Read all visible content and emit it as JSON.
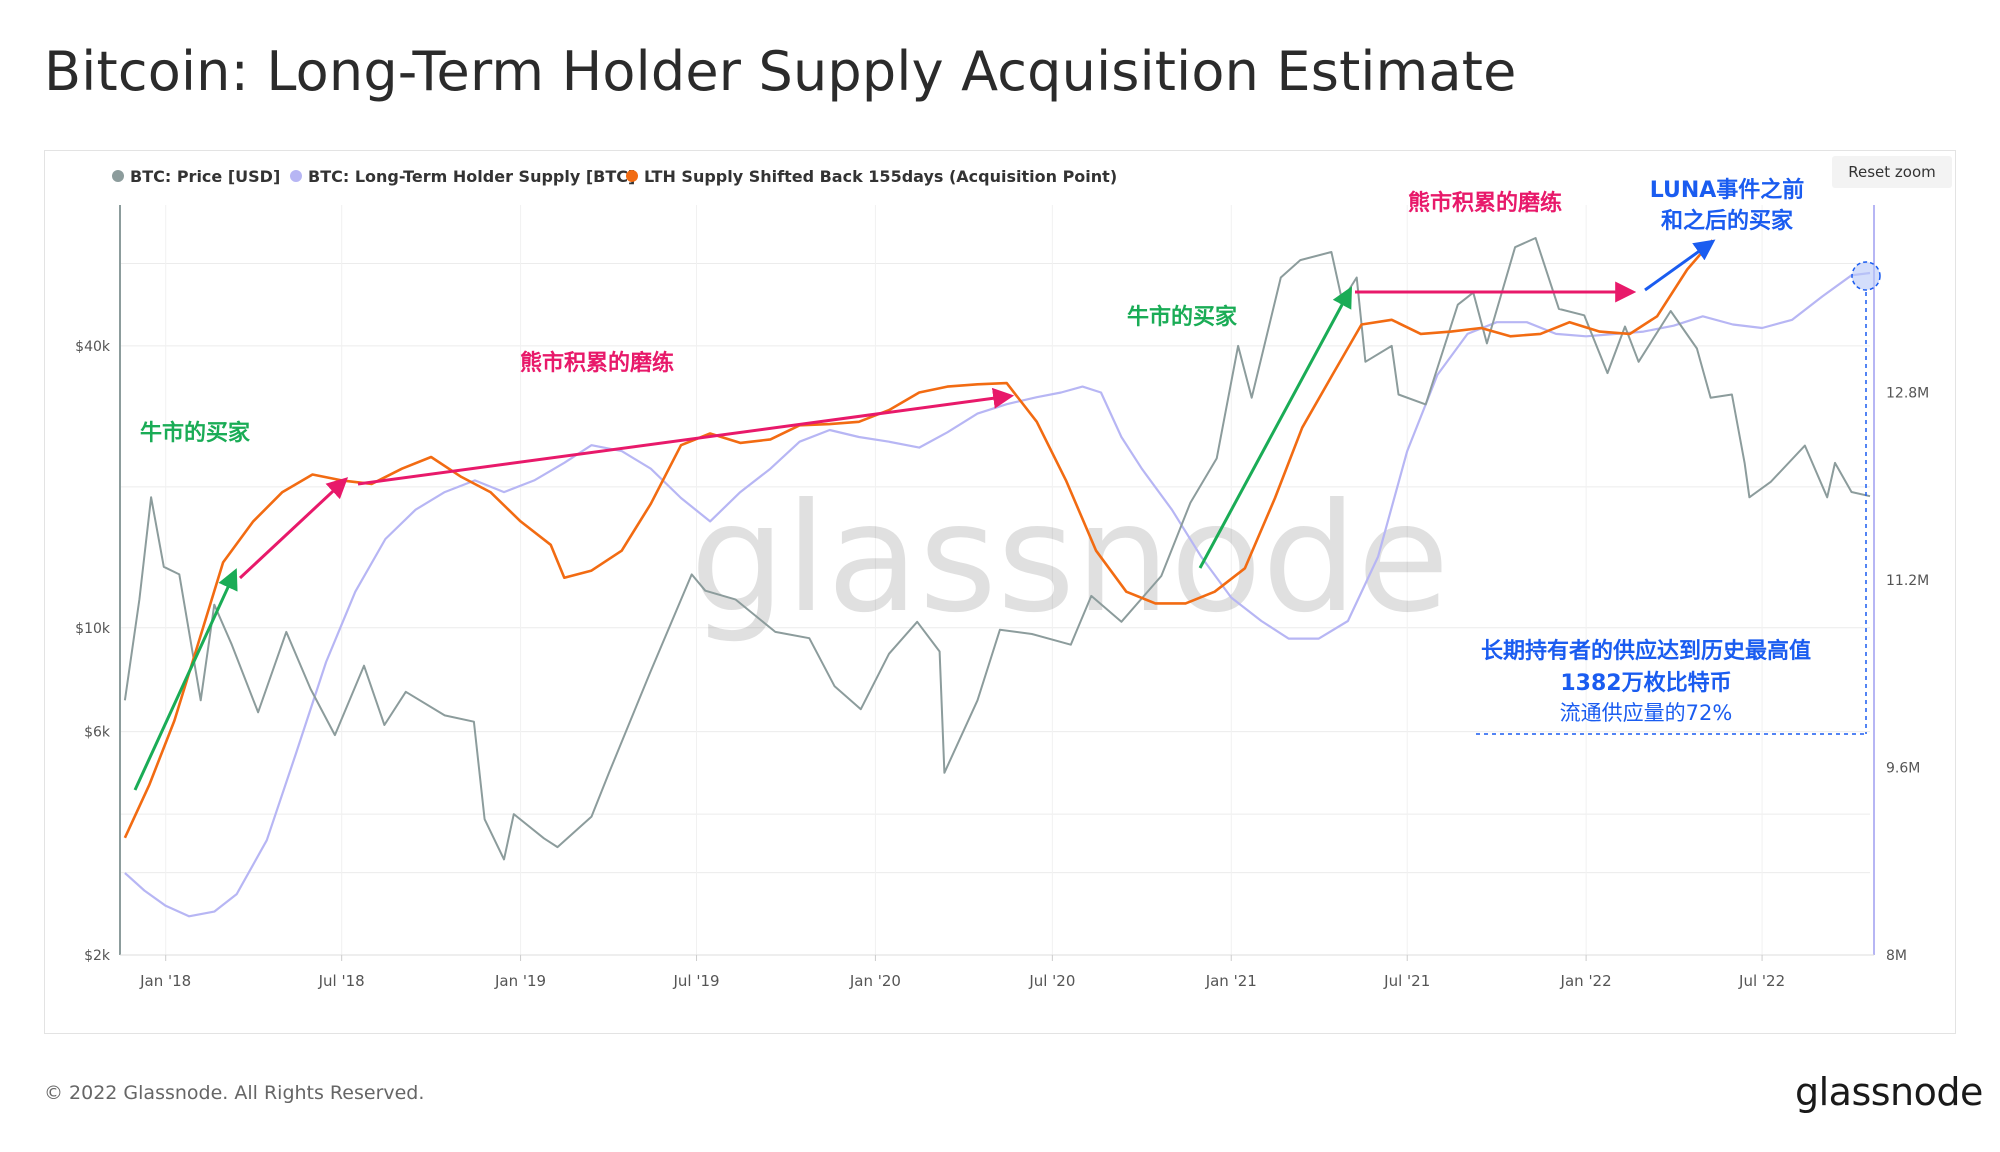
{
  "header": {
    "title": "Bitcoin: Long-Term Holder Supply Acquisition Estimate"
  },
  "toolbar": {
    "reset_zoom_label": "Reset zoom"
  },
  "footer": {
    "copyright": "© 2022 Glassnode. All Rights Reserved.",
    "logo_text": "glassnode"
  },
  "watermark": "glassnode",
  "colors": {
    "price": "#8c9c9c",
    "lth_supply": "#b7b6f4",
    "shifted": "#f26b12",
    "green": "#1aac56",
    "pink": "#e8196a",
    "blue": "#1a5cf0"
  },
  "chart_data": {
    "type": "line",
    "title": "Bitcoin: Long-Term Holder Supply Acquisition Estimate",
    "x_ticks": [
      "Jan '18",
      "Jul '18",
      "Jan '19",
      "Jul '19",
      "Jan '20",
      "Jul '20",
      "Jan '21",
      "Jul '21",
      "Jan '22",
      "Jul '22"
    ],
    "x_tick_dates": [
      "2018-01-01",
      "2018-07-01",
      "2019-01-01",
      "2019-07-01",
      "2020-01-01",
      "2020-07-01",
      "2021-01-01",
      "2021-07-01",
      "2022-01-01",
      "2022-07-01"
    ],
    "x_range": [
      "2017-11-15",
      "2022-10-20"
    ],
    "y_left": {
      "scale": "log",
      "range": [
        2000,
        80000
      ],
      "ticks": [
        2000,
        6000,
        10000,
        40000
      ],
      "tick_labels": [
        "$2k",
        "$6k",
        "$10k",
        "$40k"
      ]
    },
    "y_right": {
      "scale": "linear",
      "range": [
        8000000,
        14400000
      ],
      "ticks": [
        8000000,
        9600000,
        11200000,
        12800000
      ],
      "tick_labels": [
        "8M",
        "9.6M",
        "11.2M",
        "12.8M"
      ]
    },
    "legend": {
      "position": "top-left",
      "entries": [
        "BTC: Price [USD]",
        "BTC: Long-Term Holder Supply [BTC]",
        "LTH Supply Shifted Back 155days (Acquisition Point)"
      ]
    },
    "series": [
      {
        "name": "BTC: Price [USD]",
        "axis": "left",
        "points": [
          [
            "2017-11-20",
            7000
          ],
          [
            "2017-12-05",
            11500
          ],
          [
            "2017-12-17",
            19000
          ],
          [
            "2017-12-30",
            13500
          ],
          [
            "2018-01-15",
            13000
          ],
          [
            "2018-02-06",
            7000
          ],
          [
            "2018-02-20",
            11200
          ],
          [
            "2018-03-10",
            9200
          ],
          [
            "2018-04-06",
            6600
          ],
          [
            "2018-05-05",
            9800
          ],
          [
            "2018-05-30",
            7400
          ],
          [
            "2018-06-24",
            5900
          ],
          [
            "2018-07-24",
            8300
          ],
          [
            "2018-08-14",
            6200
          ],
          [
            "2018-09-05",
            7300
          ],
          [
            "2018-10-15",
            6500
          ],
          [
            "2018-11-14",
            6300
          ],
          [
            "2018-11-25",
            3900
          ],
          [
            "2018-12-15",
            3200
          ],
          [
            "2018-12-25",
            4000
          ],
          [
            "2019-01-25",
            3550
          ],
          [
            "2019-02-08",
            3400
          ],
          [
            "2019-03-15",
            3950
          ],
          [
            "2019-04-02",
            4900
          ],
          [
            "2019-05-14",
            8000
          ],
          [
            "2019-06-26",
            13000
          ],
          [
            "2019-07-10",
            12000
          ],
          [
            "2019-08-10",
            11500
          ],
          [
            "2019-09-20",
            9800
          ],
          [
            "2019-10-25",
            9500
          ],
          [
            "2019-11-20",
            7500
          ],
          [
            "2019-12-17",
            6700
          ],
          [
            "2020-01-15",
            8800
          ],
          [
            "2020-02-13",
            10300
          ],
          [
            "2020-03-07",
            8900
          ],
          [
            "2020-03-12",
            4900
          ],
          [
            "2020-04-15",
            7000
          ],
          [
            "2020-05-08",
            9900
          ],
          [
            "2020-06-10",
            9700
          ],
          [
            "2020-07-20",
            9200
          ],
          [
            "2020-08-10",
            11700
          ],
          [
            "2020-09-10",
            10300
          ],
          [
            "2020-10-21",
            12900
          ],
          [
            "2020-11-20",
            18500
          ],
          [
            "2020-12-17",
            23000
          ],
          [
            "2021-01-08",
            40000
          ],
          [
            "2021-01-22",
            31000
          ],
          [
            "2021-02-21",
            56000
          ],
          [
            "2021-03-13",
            61000
          ],
          [
            "2021-04-14",
            63500
          ],
          [
            "2021-04-25",
            50000
          ],
          [
            "2021-05-10",
            56000
          ],
          [
            "2021-05-19",
            37000
          ],
          [
            "2021-06-15",
            40000
          ],
          [
            "2021-06-22",
            31500
          ],
          [
            "2021-07-20",
            30000
          ],
          [
            "2021-08-22",
            49000
          ],
          [
            "2021-09-07",
            52000
          ],
          [
            "2021-09-21",
            40500
          ],
          [
            "2021-10-20",
            65000
          ],
          [
            "2021-11-10",
            68000
          ],
          [
            "2021-12-04",
            48000
          ],
          [
            "2021-12-30",
            46500
          ],
          [
            "2022-01-23",
            35000
          ],
          [
            "2022-02-10",
            44000
          ],
          [
            "2022-02-24",
            37000
          ],
          [
            "2022-03-29",
            47500
          ],
          [
            "2022-04-25",
            39500
          ],
          [
            "2022-05-09",
            31000
          ],
          [
            "2022-05-31",
            31500
          ],
          [
            "2022-06-13",
            22500
          ],
          [
            "2022-06-18",
            19000
          ],
          [
            "2022-07-10",
            20500
          ],
          [
            "2022-08-14",
            24500
          ],
          [
            "2022-09-06",
            19000
          ],
          [
            "2022-09-14",
            22500
          ],
          [
            "2022-10-01",
            19500
          ],
          [
            "2022-10-20",
            19100
          ]
        ]
      },
      {
        "name": "BTC: Long-Term Holder Supply [BTC]",
        "axis": "right",
        "points": [
          [
            "2017-11-20",
            8700000
          ],
          [
            "2017-12-10",
            8550000
          ],
          [
            "2018-01-01",
            8420000
          ],
          [
            "2018-01-25",
            8330000
          ],
          [
            "2018-02-20",
            8370000
          ],
          [
            "2018-03-15",
            8520000
          ],
          [
            "2018-04-15",
            8980000
          ],
          [
            "2018-05-15",
            9720000
          ],
          [
            "2018-06-15",
            10500000
          ],
          [
            "2018-07-15",
            11100000
          ],
          [
            "2018-08-15",
            11550000
          ],
          [
            "2018-09-15",
            11800000
          ],
          [
            "2018-10-15",
            11950000
          ],
          [
            "2018-11-15",
            12050000
          ],
          [
            "2018-12-15",
            11950000
          ],
          [
            "2019-01-15",
            12050000
          ],
          [
            "2019-02-15",
            12200000
          ],
          [
            "2019-03-15",
            12350000
          ],
          [
            "2019-04-15",
            12300000
          ],
          [
            "2019-05-15",
            12150000
          ],
          [
            "2019-06-15",
            11900000
          ],
          [
            "2019-07-15",
            11700000
          ],
          [
            "2019-08-15",
            11950000
          ],
          [
            "2019-09-15",
            12150000
          ],
          [
            "2019-10-15",
            12380000
          ],
          [
            "2019-11-15",
            12480000
          ],
          [
            "2019-12-15",
            12420000
          ],
          [
            "2020-01-15",
            12380000
          ],
          [
            "2020-02-15",
            12330000
          ],
          [
            "2020-03-15",
            12460000
          ],
          [
            "2020-04-15",
            12620000
          ],
          [
            "2020-05-15",
            12700000
          ],
          [
            "2020-06-15",
            12760000
          ],
          [
            "2020-07-10",
            12800000
          ],
          [
            "2020-08-01",
            12850000
          ],
          [
            "2020-08-20",
            12800000
          ],
          [
            "2020-09-10",
            12420000
          ],
          [
            "2020-10-01",
            12150000
          ],
          [
            "2020-11-01",
            11800000
          ],
          [
            "2020-12-01",
            11400000
          ],
          [
            "2021-01-01",
            11050000
          ],
          [
            "2021-02-01",
            10850000
          ],
          [
            "2021-03-01",
            10700000
          ],
          [
            "2021-04-01",
            10700000
          ],
          [
            "2021-05-01",
            10850000
          ],
          [
            "2021-06-01",
            11400000
          ],
          [
            "2021-07-01",
            12300000
          ],
          [
            "2021-08-01",
            12950000
          ],
          [
            "2021-09-01",
            13300000
          ],
          [
            "2021-10-01",
            13400000
          ],
          [
            "2021-11-01",
            13400000
          ],
          [
            "2021-12-01",
            13300000
          ],
          [
            "2022-01-01",
            13280000
          ],
          [
            "2022-02-01",
            13300000
          ],
          [
            "2022-03-01",
            13320000
          ],
          [
            "2022-04-01",
            13370000
          ],
          [
            "2022-05-01",
            13450000
          ],
          [
            "2022-06-01",
            13380000
          ],
          [
            "2022-07-01",
            13350000
          ],
          [
            "2022-08-01",
            13420000
          ],
          [
            "2022-09-01",
            13620000
          ],
          [
            "2022-10-01",
            13800000
          ],
          [
            "2022-10-20",
            13820000
          ]
        ]
      },
      {
        "name": "LTH Supply Shifted Back 155days (Acquisition Point)",
        "axis": "right",
        "points": [
          [
            "2017-11-20",
            9000000
          ],
          [
            "2017-12-15",
            9450000
          ],
          [
            "2018-01-10",
            10000000
          ],
          [
            "2018-02-05",
            10700000
          ],
          [
            "2018-03-01",
            11350000
          ],
          [
            "2018-04-01",
            11700000
          ],
          [
            "2018-05-01",
            11950000
          ],
          [
            "2018-06-01",
            12100000
          ],
          [
            "2018-07-01",
            12050000
          ],
          [
            "2018-08-01",
            12020000
          ],
          [
            "2018-09-01",
            12150000
          ],
          [
            "2018-10-01",
            12250000
          ],
          [
            "2018-11-01",
            12080000
          ],
          [
            "2018-12-01",
            11950000
          ],
          [
            "2019-01-01",
            11700000
          ],
          [
            "2019-02-01",
            11500000
          ],
          [
            "2019-02-15",
            11220000
          ],
          [
            "2019-03-15",
            11280000
          ],
          [
            "2019-04-15",
            11450000
          ],
          [
            "2019-05-15",
            11850000
          ],
          [
            "2019-06-15",
            12350000
          ],
          [
            "2019-07-15",
            12450000
          ],
          [
            "2019-08-15",
            12370000
          ],
          [
            "2019-09-15",
            12400000
          ],
          [
            "2019-10-15",
            12520000
          ],
          [
            "2019-11-15",
            12530000
          ],
          [
            "2019-12-15",
            12550000
          ],
          [
            "2020-01-15",
            12650000
          ],
          [
            "2020-02-15",
            12800000
          ],
          [
            "2020-03-15",
            12850000
          ],
          [
            "2020-04-15",
            12870000
          ],
          [
            "2020-05-15",
            12880000
          ],
          [
            "2020-06-15",
            12550000
          ],
          [
            "2020-07-15",
            12050000
          ],
          [
            "2020-08-15",
            11450000
          ],
          [
            "2020-09-15",
            11100000
          ],
          [
            "2020-10-15",
            11000000
          ],
          [
            "2020-11-15",
            11000000
          ],
          [
            "2020-12-15",
            11100000
          ],
          [
            "2021-01-15",
            11300000
          ],
          [
            "2021-02-15",
            11900000
          ],
          [
            "2021-03-15",
            12500000
          ],
          [
            "2021-04-15",
            12950000
          ],
          [
            "2021-05-15",
            13380000
          ],
          [
            "2021-06-15",
            13420000
          ],
          [
            "2021-07-15",
            13300000
          ],
          [
            "2021-08-15",
            13320000
          ],
          [
            "2021-09-15",
            13350000
          ],
          [
            "2021-10-15",
            13280000
          ],
          [
            "2021-11-15",
            13300000
          ],
          [
            "2021-12-15",
            13400000
          ],
          [
            "2022-01-15",
            13320000
          ],
          [
            "2022-02-15",
            13300000
          ],
          [
            "2022-03-15",
            13450000
          ],
          [
            "2022-04-15",
            13850000
          ],
          [
            "2022-05-11",
            14100000
          ]
        ]
      }
    ],
    "annotations": [
      {
        "key": "bull_buyers_1",
        "text": "牛市的买家",
        "color": "green"
      },
      {
        "key": "bear_accum_1",
        "text": "熊市积累的磨练",
        "color": "pink"
      },
      {
        "key": "bull_buyers_2",
        "text": "牛市的买家",
        "color": "green"
      },
      {
        "key": "bear_accum_2",
        "text": "熊市积累的磨练",
        "color": "pink"
      },
      {
        "key": "luna_line1",
        "text": "LUNA事件之前",
        "color": "blue"
      },
      {
        "key": "luna_line2",
        "text": "和之后的买家",
        "color": "blue"
      },
      {
        "key": "ath_line1",
        "text": "长期持有者的供应达到历史最高值",
        "color": "blue"
      },
      {
        "key": "ath_line2",
        "text": "1382万枚比特币",
        "color": "blue"
      },
      {
        "key": "ath_line3",
        "text": "流通供应量的72%",
        "color": "blue"
      }
    ]
  }
}
